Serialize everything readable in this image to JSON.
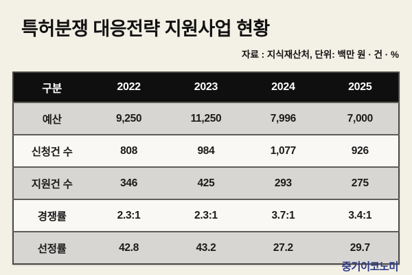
{
  "page": {
    "title": "특허분쟁 대응전략 지원사업 현황",
    "source_note": "자료 : 지식재산처, 단위: 백만 원 · 건 · %",
    "brand": "중기이코노미"
  },
  "colors": {
    "background": "#f3f0e5",
    "header_bg": "#0f0f0f",
    "header_text": "#ffffff",
    "row_gray": "#d7d6d3",
    "row_light": "#f9f8f5",
    "table_border": "#4a4845",
    "brand_text": "#2e3a87"
  },
  "chart_data": {
    "type": "table",
    "title": "특허분쟁 대응전략 지원사업 현황",
    "source": "지식재산처",
    "units": "백만 원 · 건 · %",
    "columns": [
      "구분",
      "2022",
      "2023",
      "2024",
      "2025"
    ],
    "rows": [
      {
        "label": "예산",
        "values": [
          "9,250",
          "11,250",
          "7,996",
          "7,000"
        ]
      },
      {
        "label": "신청건 수",
        "values": [
          "808",
          "984",
          "1,077",
          "926"
        ]
      },
      {
        "label": "지원건 수",
        "values": [
          "346",
          "425",
          "293",
          "275"
        ]
      },
      {
        "label": "경쟁률",
        "values": [
          "2.3:1",
          "2.3:1",
          "3.7:1",
          "3.4:1"
        ]
      },
      {
        "label": "선정률",
        "values": [
          "42.8",
          "43.2",
          "27.2",
          "29.7"
        ]
      }
    ]
  }
}
